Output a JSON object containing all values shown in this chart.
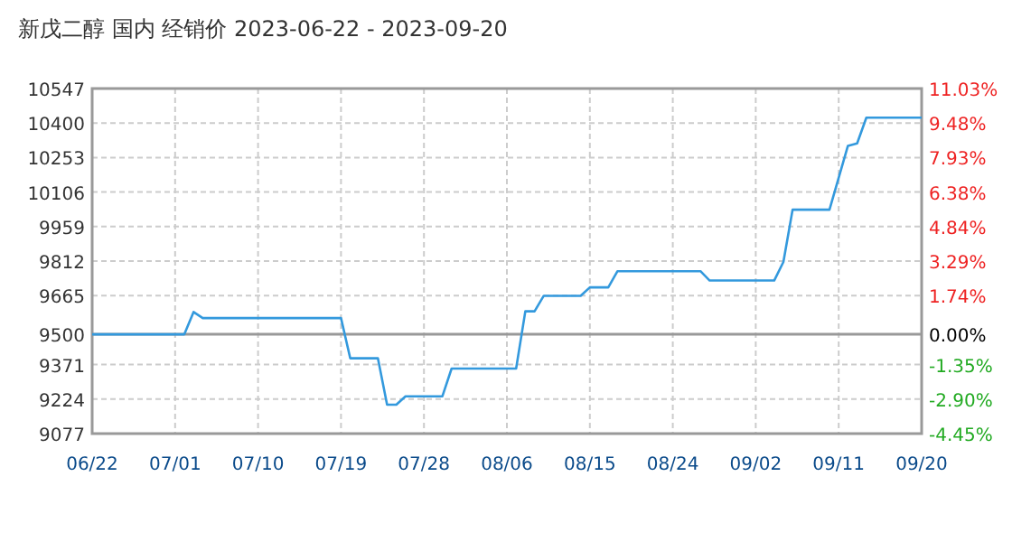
{
  "chart_data": {
    "type": "line",
    "title": "新戊二醇 国内 经销价 2023-06-22 - 2023-09-20",
    "x": [
      "2023-06-22",
      "2023-07-02",
      "2023-07-03",
      "2023-07-04",
      "2023-07-19",
      "2023-07-20",
      "2023-07-23",
      "2023-07-24",
      "2023-07-25",
      "2023-07-26",
      "2023-07-30",
      "2023-07-31",
      "2023-08-07",
      "2023-08-08",
      "2023-08-09",
      "2023-08-10",
      "2023-08-14",
      "2023-08-15",
      "2023-08-17",
      "2023-08-18",
      "2023-08-27",
      "2023-08-28",
      "2023-09-04",
      "2023-09-05",
      "2023-09-06",
      "2023-09-10",
      "2023-09-12",
      "2023-09-13",
      "2023-09-14",
      "2023-09-20"
    ],
    "series": [
      {
        "color": "#3399dd",
        "values": [
          9500,
          9500,
          9595,
          9569,
          9569,
          9398,
          9398,
          9200,
          9200,
          9236,
          9236,
          9354,
          9354,
          9598,
          9598,
          9664,
          9664,
          9700,
          9700,
          9769,
          9769,
          9729,
          9729,
          9808,
          10031,
          10031,
          10303,
          10313,
          10423,
          10423
        ]
      }
    ],
    "xlim": [
      "2023-06-22",
      "2023-09-20"
    ],
    "xticks": [
      {
        "value": "2023-06-22",
        "label": "06/22"
      },
      {
        "value": "2023-07-01",
        "label": "07/01"
      },
      {
        "value": "2023-07-10",
        "label": "07/10"
      },
      {
        "value": "2023-07-19",
        "label": "07/19"
      },
      {
        "value": "2023-07-28",
        "label": "07/28"
      },
      {
        "value": "2023-08-06",
        "label": "08/06"
      },
      {
        "value": "2023-08-15",
        "label": "08/15"
      },
      {
        "value": "2023-08-24",
        "label": "08/24"
      },
      {
        "value": "2023-09-02",
        "label": "09/02"
      },
      {
        "value": "2023-09-11",
        "label": "09/11"
      },
      {
        "value": "2023-09-20",
        "label": "09/20"
      }
    ],
    "ylim": [
      9077,
      10547
    ],
    "yticks": [
      9077,
      9224,
      9371,
      9500,
      9665,
      9812,
      9959,
      10106,
      10253,
      10400,
      10547
    ],
    "y2lim": [
      -4.45,
      11.03
    ],
    "y2ticks": [
      {
        "value": -4.45,
        "label": "-4.45%"
      },
      {
        "value": -2.9,
        "label": "-2.90%"
      },
      {
        "value": -1.35,
        "label": "-1.35%"
      },
      {
        "value": 0,
        "label": "0.00%"
      },
      {
        "value": 1.74,
        "label": "1.74%"
      },
      {
        "value": 3.29,
        "label": "3.29%"
      },
      {
        "value": 4.84,
        "label": "4.84%"
      },
      {
        "value": 6.38,
        "label": "6.38%"
      },
      {
        "value": 7.93,
        "label": "7.93%"
      },
      {
        "value": 9.48,
        "label": "9.48%"
      },
      {
        "value": 11.03,
        "label": "11.03%"
      }
    ],
    "ref_lines": [
      {
        "axis": "y",
        "value": 9500,
        "color": "#999999"
      }
    ],
    "grid": true,
    "line_style": "solid",
    "marker": "none"
  }
}
